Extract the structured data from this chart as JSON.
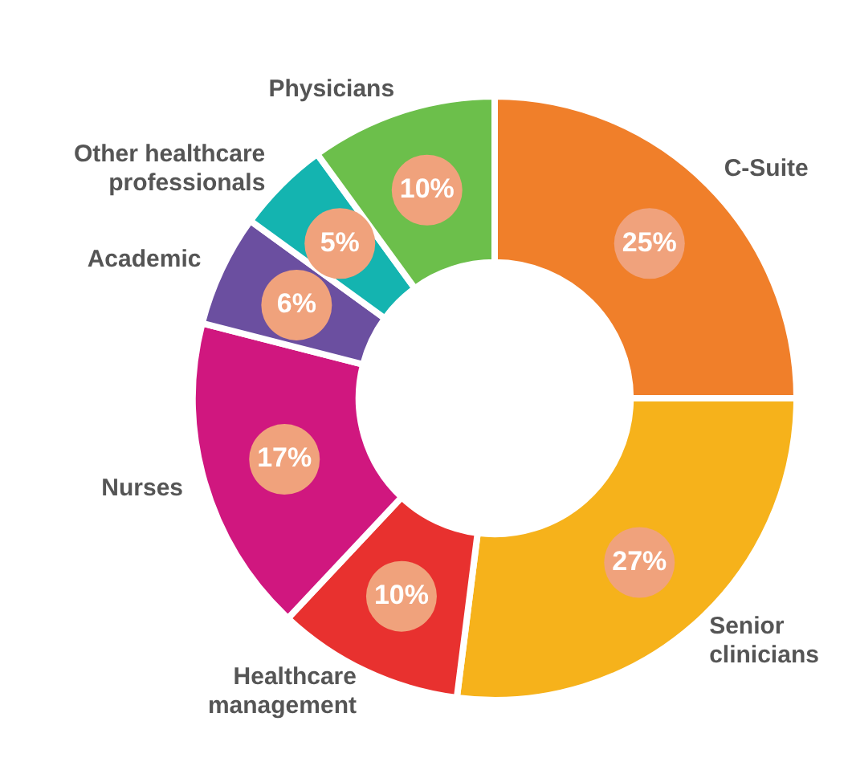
{
  "chart_data": {
    "type": "donut",
    "categories": [
      "C-Suite",
      "Senior clinicians",
      "Healthcare management",
      "Nurses",
      "Academic",
      "Other healthcare professionals",
      "Physicians"
    ],
    "values": [
      25,
      27,
      10,
      17,
      6,
      5,
      10
    ],
    "colors": [
      "#f07f2a",
      "#f6b21b",
      "#e8312f",
      "#d0177f",
      "#6b4fa0",
      "#14b4b0",
      "#6cbf4b"
    ],
    "value_labels": [
      "25%",
      "27%",
      "10%",
      "17%",
      "6%",
      "5%",
      "10%"
    ],
    "legend": false
  }
}
